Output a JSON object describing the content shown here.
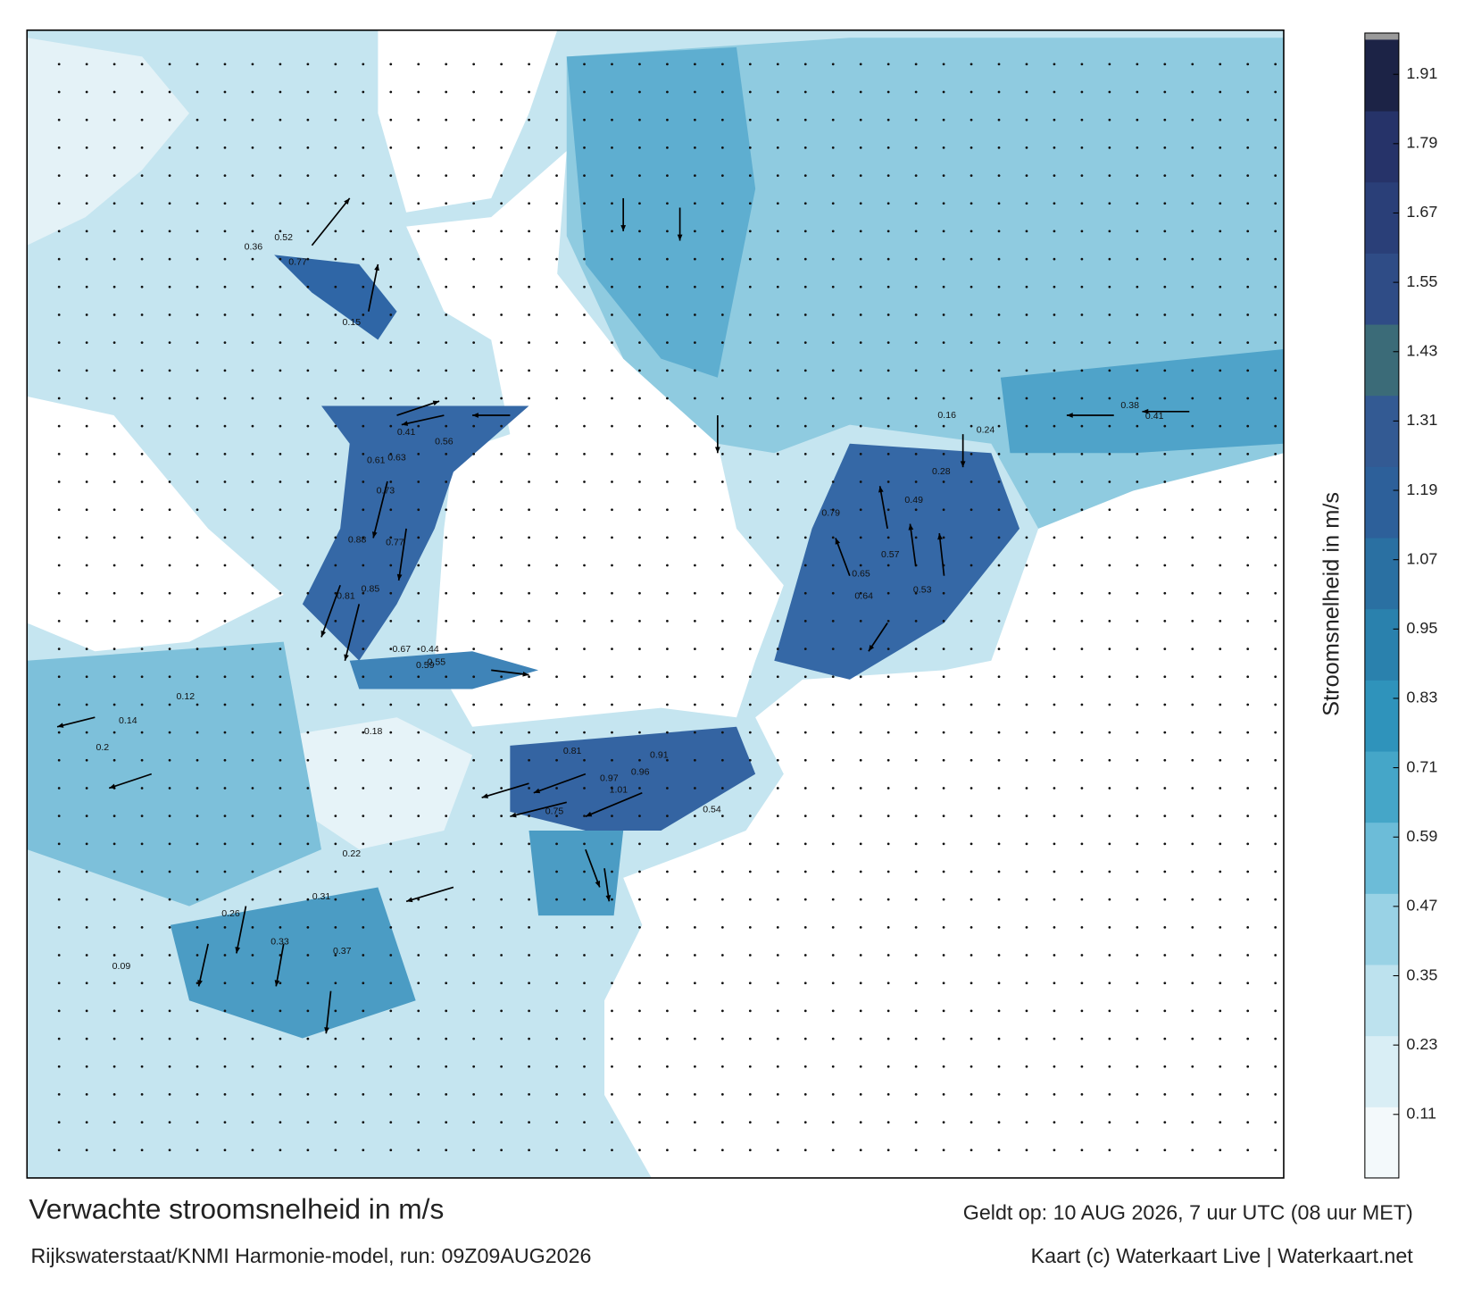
{
  "header": {
    "title": "Verwachte stroomsnelheid in m/s",
    "subtitle": "Rijkswaterstaat/KNMI Harmonie-model, run: 09Z09AUG2026",
    "valid": "Geldt op: 10 AUG 2026, 7 uur UTC (08 uur MET)",
    "credit": "Kaart (c) Waterkaart Live | Waterkaart.net"
  },
  "colorbar": {
    "label": "Stroomsnelheid in m/s",
    "lim": [
      0,
      1.97
    ],
    "ticks": [
      0.11,
      0.23,
      0.35,
      0.47,
      0.59,
      0.71,
      0.83,
      0.95,
      1.07,
      1.19,
      1.31,
      1.43,
      1.55,
      1.67,
      1.79,
      1.91
    ],
    "colors": [
      "#f3f9fb",
      "#d9eef5",
      "#bde2ee",
      "#99d2e5",
      "#6cbcd8",
      "#45a6c8",
      "#2f93bb",
      "#2a81ad",
      "#2a70a2",
      "#2d609a",
      "#335a93",
      "#3b6b78",
      "#2f4c86",
      "#2a3f78",
      "#263369",
      "#1c2346"
    ]
  },
  "map_labels": [
    "0.77",
    "0.52",
    "0.36",
    "0.15",
    "0.61",
    "0.63",
    "0.73",
    "0.88",
    "0.77",
    "0.81",
    "0.85",
    "0.44",
    "0.55",
    "0.67",
    "0.59",
    "0.56",
    "0.41",
    "0.79",
    "0.65",
    "0.64",
    "0.57",
    "0.53",
    "0.49",
    "0.91",
    "0.96",
    "0.97",
    "1.01",
    "0.81",
    "0.75",
    "0.54",
    "0.33",
    "0.31",
    "0.37",
    "0.26",
    "0.22",
    "0.18",
    "0.14",
    "0.12",
    "0.09",
    "0.2",
    "0.38",
    "0.41",
    "0.24",
    "0.28",
    "0.16"
  ]
}
